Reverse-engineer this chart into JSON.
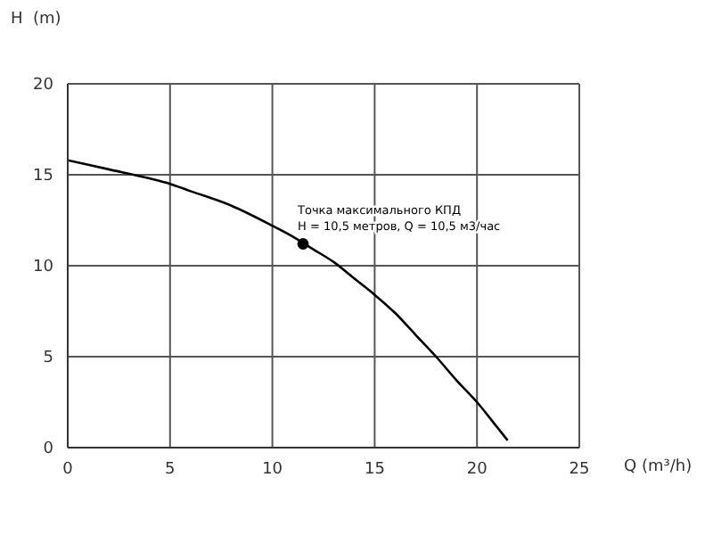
{
  "chart_data": {
    "type": "line",
    "xlabel": "Q (m³/h)",
    "ylabel": "H  (m)",
    "series": [
      {
        "color": "#000000",
        "x": [
          0,
          2,
          4,
          5,
          6,
          8,
          10,
          11,
          12,
          13,
          14,
          15,
          16,
          17,
          18,
          19,
          20,
          21,
          21.5
        ],
        "values": [
          15.8,
          15.3,
          14.8,
          14.5,
          14.1,
          13.3,
          12.2,
          11.6,
          10.9,
          10.2,
          9.3,
          8.4,
          7.4,
          6.2,
          5.0,
          3.7,
          2.5,
          1.1,
          0.4
        ]
      },
      {
        "type": "scatter",
        "marker": "circle",
        "color": "#000000",
        "x": [
          11.5
        ],
        "values": [
          11.2
        ]
      }
    ],
    "annotations": [
      {
        "text": "Точка максимального КПД\nH = 10,5 метров, Q = 10,5 м3/час",
        "x": 11.5,
        "y": 11.2
      }
    ],
    "xlim": [
      0,
      25
    ],
    "xticks": [
      0,
      5,
      10,
      15,
      20,
      25
    ],
    "ylim": [
      0,
      20
    ],
    "yticks": [
      0,
      5,
      10,
      15,
      20
    ],
    "grid": true,
    "line_style": "solid"
  }
}
